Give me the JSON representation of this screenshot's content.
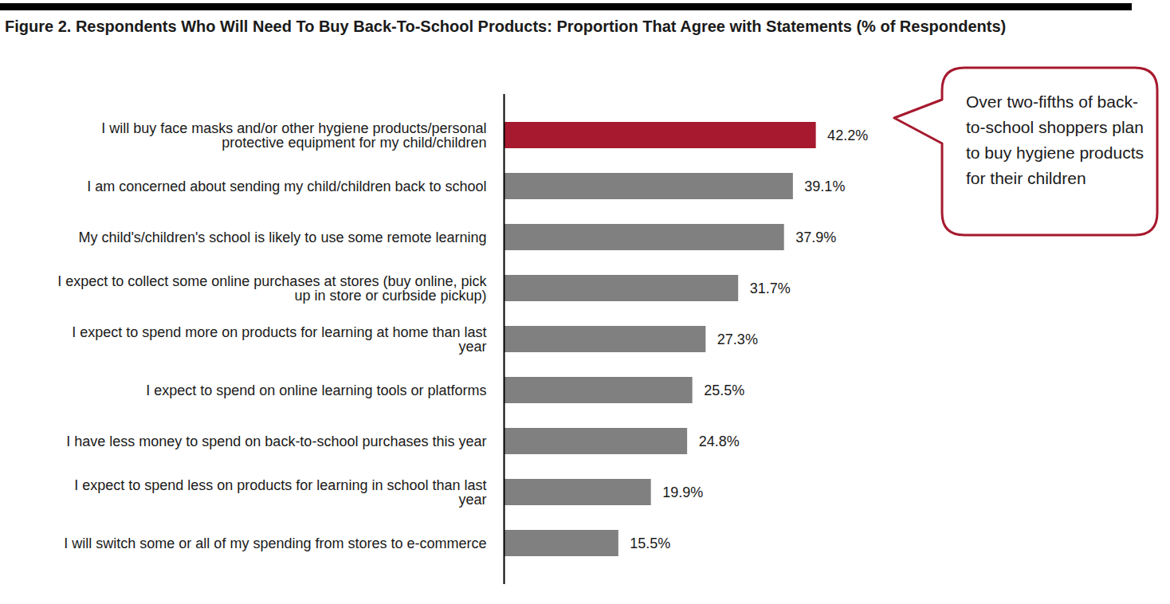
{
  "chart_data": {
    "type": "bar",
    "orientation": "horizontal",
    "title": "Figure 2. Respondents Who Will Need To Buy Back-To-School Products: Proportion That Agree with Statements (% of Respondents)",
    "annotation": "Over two-fifths of back-to-school shoppers plan to buy hygiene products for their children",
    "categories": [
      "I will buy face masks and/or other hygiene products/personal protective equipment for my child/children",
      "I am concerned about sending my child/children back to school",
      "My child's/children's school is likely to use some remote learning",
      "I expect to collect some online purchases at stores (buy online, pick up in store or curbside pickup)",
      "I expect to spend more on products for learning at home than last year",
      "I expect to spend on online learning tools or platforms",
      "I have less money to spend on back-to-school purchases this year",
      "I expect to spend less on products for learning in school than last year",
      "I will switch some or all of my spending from stores to e-commerce"
    ],
    "values": [
      42.2,
      39.1,
      37.9,
      31.7,
      27.3,
      25.5,
      24.8,
      19.9,
      15.5
    ],
    "value_labels": [
      "42.2%",
      "39.1%",
      "37.9%",
      "31.7%",
      "27.3%",
      "25.5%",
      "24.8%",
      "19.9%",
      "15.5%"
    ],
    "colors": [
      "#a6192e",
      "#808080",
      "#808080",
      "#808080",
      "#808080",
      "#808080",
      "#808080",
      "#808080",
      "#808080"
    ],
    "xlim": [
      0,
      50
    ],
    "data_labels": true,
    "tick_labels": "y",
    "grid": false
  }
}
